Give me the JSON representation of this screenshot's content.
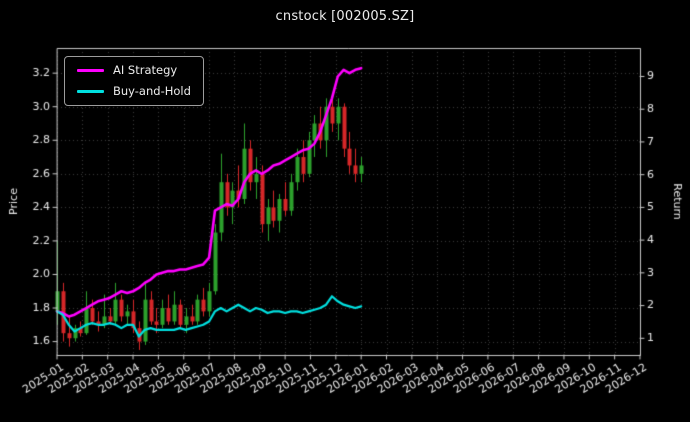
{
  "title": "cnstock [002005.SZ]",
  "legend": {
    "items": [
      {
        "label": "AI Strategy",
        "color": "#ff00ff"
      },
      {
        "label": "Buy-and-Hold",
        "color": "#00e0e0"
      }
    ]
  },
  "chart_data": {
    "type": "line",
    "subtype": "candlestick-with-overlay-lines",
    "title": "cnstock [002005.SZ]",
    "xlabel": "",
    "ylabel_left": "Price",
    "ylabel_right": "Return",
    "background": "#000000",
    "grid": true,
    "legend_position": "upper left",
    "x_unit": "weekly samples from 2025-01 to 2026-01; axis extends to 2026-12",
    "x_ticks": [
      "2025-01",
      "2025-02",
      "2025-03",
      "2025-04",
      "2025-05",
      "2025-06",
      "2025-07",
      "2025-08",
      "2025-09",
      "2025-10",
      "2025-11",
      "2025-12",
      "2026-01",
      "2026-02",
      "2026-03",
      "2026-04",
      "2026-05",
      "2026-06",
      "2026-07",
      "2026-08",
      "2026-09",
      "2026-10",
      "2026-11",
      "2026-12"
    ],
    "price_ticks": [
      1.6,
      1.8,
      2.0,
      2.2,
      2.4,
      2.6,
      2.8,
      3.0,
      3.2
    ],
    "price_ylim": [
      1.52,
      3.35
    ],
    "return_ticks": [
      1,
      2,
      3,
      4,
      5,
      6,
      7,
      8,
      9
    ],
    "return_ylim": [
      0.49,
      9.87
    ],
    "series": [
      {
        "name": "AI Strategy",
        "color": "#ff00ff",
        "width": 2.6,
        "values": [
          1.78,
          1.77,
          1.75,
          1.76,
          1.78,
          1.8,
          1.82,
          1.84,
          1.85,
          1.86,
          1.88,
          1.9,
          1.89,
          1.9,
          1.92,
          1.95,
          1.97,
          2.0,
          2.01,
          2.02,
          2.02,
          2.03,
          2.03,
          2.04,
          2.05,
          2.06,
          2.1,
          2.38,
          2.4,
          2.42,
          2.41,
          2.45,
          2.55,
          2.6,
          2.62,
          2.6,
          2.62,
          2.65,
          2.66,
          2.68,
          2.7,
          2.72,
          2.74,
          2.75,
          2.78,
          2.85,
          2.95,
          3.05,
          3.18,
          3.22,
          3.2,
          3.22,
          3.23
        ]
      },
      {
        "name": "Buy-and-Hold",
        "color": "#00e0e0",
        "width": 2.2,
        "values": [
          1.78,
          1.76,
          1.7,
          1.66,
          1.68,
          1.7,
          1.71,
          1.7,
          1.7,
          1.71,
          1.7,
          1.68,
          1.7,
          1.7,
          1.63,
          1.67,
          1.68,
          1.67,
          1.67,
          1.67,
          1.67,
          1.68,
          1.67,
          1.68,
          1.69,
          1.7,
          1.72,
          1.78,
          1.8,
          1.78,
          1.8,
          1.82,
          1.8,
          1.78,
          1.8,
          1.79,
          1.77,
          1.78,
          1.78,
          1.77,
          1.78,
          1.78,
          1.77,
          1.78,
          1.79,
          1.8,
          1.82,
          1.87,
          1.84,
          1.82,
          1.81,
          1.8,
          1.81
        ]
      }
    ],
    "candles": {
      "up_color": "#2ca02c",
      "down_color": "#d62728",
      "ohlc": [
        [
          1.78,
          2.2,
          1.7,
          1.9
        ],
        [
          1.9,
          1.95,
          1.6,
          1.65
        ],
        [
          1.65,
          1.75,
          1.57,
          1.62
        ],
        [
          1.62,
          1.7,
          1.6,
          1.68
        ],
        [
          1.68,
          1.72,
          1.63,
          1.65
        ],
        [
          1.65,
          1.9,
          1.64,
          1.8
        ],
        [
          1.8,
          1.85,
          1.7,
          1.72
        ],
        [
          1.72,
          1.78,
          1.66,
          1.7
        ],
        [
          1.7,
          1.88,
          1.68,
          1.75
        ],
        [
          1.75,
          1.8,
          1.7,
          1.72
        ],
        [
          1.72,
          1.95,
          1.7,
          1.85
        ],
        [
          1.85,
          1.88,
          1.72,
          1.75
        ],
        [
          1.75,
          1.82,
          1.7,
          1.78
        ],
        [
          1.78,
          1.85,
          1.65,
          1.68
        ],
        [
          1.68,
          1.72,
          1.55,
          1.6
        ],
        [
          1.6,
          1.95,
          1.58,
          1.85
        ],
        [
          1.85,
          1.9,
          1.7,
          1.72
        ],
        [
          1.72,
          1.8,
          1.65,
          1.7
        ],
        [
          1.7,
          1.85,
          1.68,
          1.8
        ],
        [
          1.8,
          1.88,
          1.7,
          1.72
        ],
        [
          1.72,
          1.9,
          1.7,
          1.82
        ],
        [
          1.82,
          1.85,
          1.68,
          1.7
        ],
        [
          1.7,
          1.8,
          1.65,
          1.75
        ],
        [
          1.75,
          1.82,
          1.7,
          1.72
        ],
        [
          1.72,
          1.88,
          1.7,
          1.85
        ],
        [
          1.85,
          1.92,
          1.75,
          1.78
        ],
        [
          1.78,
          1.95,
          1.75,
          1.9
        ],
        [
          1.9,
          2.3,
          1.88,
          2.25
        ],
        [
          2.25,
          2.72,
          2.2,
          2.55
        ],
        [
          2.55,
          2.6,
          2.35,
          2.4
        ],
        [
          2.4,
          2.55,
          2.3,
          2.5
        ],
        [
          2.5,
          2.65,
          2.4,
          2.45
        ],
        [
          2.45,
          2.9,
          2.42,
          2.75
        ],
        [
          2.75,
          2.8,
          2.5,
          2.55
        ],
        [
          2.55,
          2.7,
          2.45,
          2.6
        ],
        [
          2.6,
          2.65,
          2.25,
          2.3
        ],
        [
          2.3,
          2.45,
          2.2,
          2.4
        ],
        [
          2.4,
          2.5,
          2.28,
          2.32
        ],
        [
          2.32,
          2.48,
          2.25,
          2.45
        ],
        [
          2.45,
          2.55,
          2.35,
          2.38
        ],
        [
          2.38,
          2.6,
          2.35,
          2.55
        ],
        [
          2.55,
          2.75,
          2.5,
          2.7
        ],
        [
          2.7,
          2.8,
          2.55,
          2.6
        ],
        [
          2.6,
          2.85,
          2.58,
          2.8
        ],
        [
          2.8,
          2.95,
          2.7,
          2.9
        ],
        [
          2.9,
          3.0,
          2.75,
          2.8
        ],
        [
          2.8,
          3.05,
          2.7,
          3.0
        ],
        [
          3.0,
          3.08,
          2.85,
          2.9
        ],
        [
          2.9,
          3.05,
          2.8,
          3.0
        ],
        [
          3.0,
          3.02,
          2.7,
          2.75
        ],
        [
          2.75,
          2.85,
          2.6,
          2.65
        ],
        [
          2.65,
          2.75,
          2.55,
          2.6
        ],
        [
          2.6,
          2.7,
          2.55,
          2.65
        ]
      ]
    }
  }
}
